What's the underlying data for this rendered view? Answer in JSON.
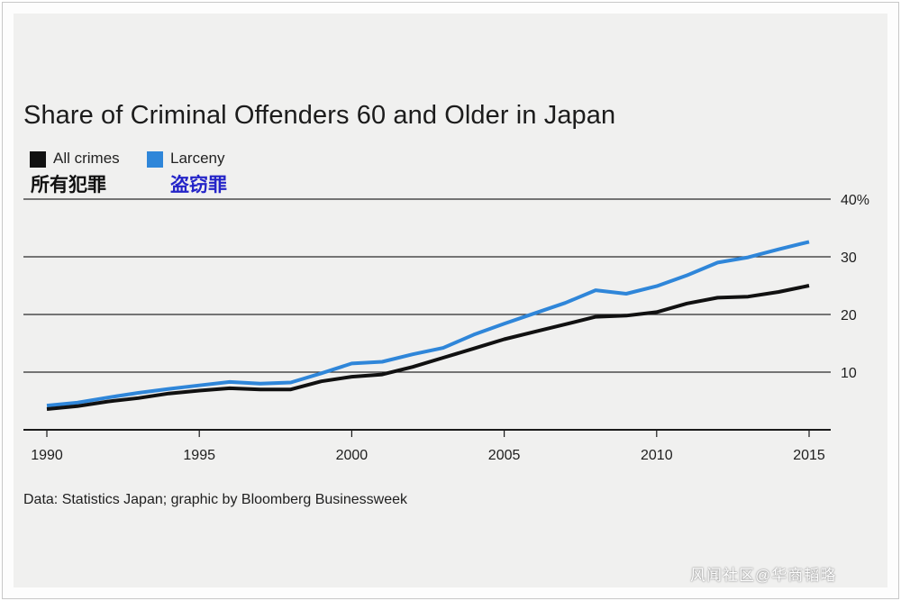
{
  "chart_data": {
    "type": "line",
    "title": "Share of Criminal Offenders 60 and Older in Japan",
    "x": [
      1990,
      1991,
      1992,
      1993,
      1994,
      1995,
      1996,
      1997,
      1998,
      1999,
      2000,
      2001,
      2002,
      2003,
      2004,
      2005,
      2006,
      2007,
      2008,
      2009,
      2010,
      2011,
      2012,
      2013,
      2014,
      2015
    ],
    "series": [
      {
        "name": "All crimes",
        "name_cn": "所有犯罪",
        "color": "#111111",
        "label_color": "#111111",
        "values": [
          3.6,
          4.1,
          4.9,
          5.5,
          6.3,
          6.8,
          7.2,
          7.0,
          7.0,
          8.4,
          9.2,
          9.6,
          10.9,
          12.5,
          14.1,
          15.7,
          17.0,
          18.3,
          19.6,
          19.8,
          20.4,
          21.9,
          22.9,
          23.1,
          23.9,
          25.0
        ]
      },
      {
        "name": "Larceny",
        "name_cn": "盗窃罪",
        "color": "#2f86d9",
        "label_color": "#2424c8",
        "values": [
          4.2,
          4.7,
          5.6,
          6.4,
          7.1,
          7.7,
          8.3,
          8.0,
          8.2,
          9.8,
          11.5,
          11.8,
          13.1,
          14.2,
          16.5,
          18.4,
          20.2,
          22.0,
          24.2,
          23.6,
          24.9,
          26.8,
          29.0,
          29.9,
          31.3,
          32.6
        ]
      }
    ],
    "x_ticks": [
      "1990",
      "1995",
      "2000",
      "2005",
      "2010",
      "2015"
    ],
    "y_ticks": [
      {
        "value": 10,
        "label": "10"
      },
      {
        "value": 20,
        "label": "20"
      },
      {
        "value": 30,
        "label": "30"
      },
      {
        "value": 40,
        "label": "40%"
      }
    ],
    "ylim": [
      0,
      40
    ],
    "xlim": [
      1990,
      2015
    ],
    "source": "Data: Statistics Japan; graphic by Bloomberg Businessweek"
  },
  "watermark": "风闻社区@华商韬略"
}
